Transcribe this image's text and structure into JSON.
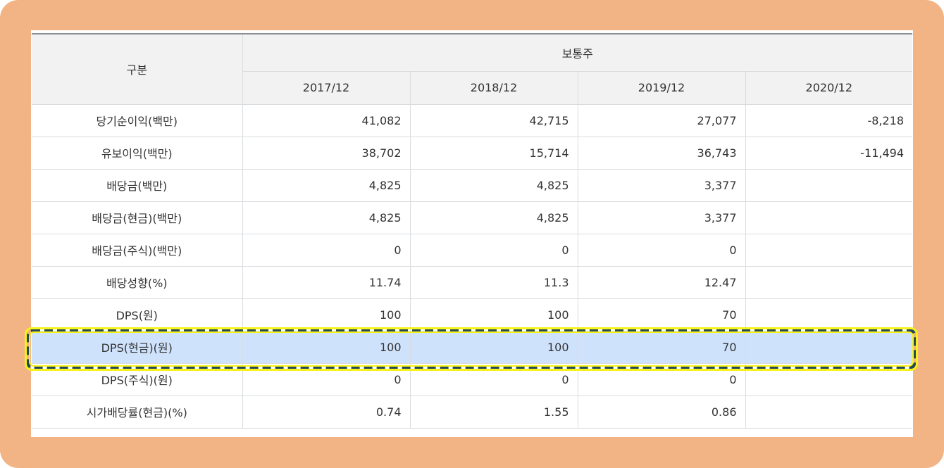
{
  "header": {
    "category": "구분",
    "group": "보통주",
    "periods": [
      "2017/12",
      "2018/12",
      "2019/12",
      "2020/12"
    ]
  },
  "rows": [
    {
      "label": "당기순이익(백만)",
      "values": [
        "41,082",
        "42,715",
        "27,077",
        "-8,218"
      ]
    },
    {
      "label": "유보이익(백만)",
      "values": [
        "38,702",
        "15,714",
        "36,743",
        "-11,494"
      ]
    },
    {
      "label": "배당금(백만)",
      "values": [
        "4,825",
        "4,825",
        "3,377",
        ""
      ]
    },
    {
      "label": "배당금(현금)(백만)",
      "values": [
        "4,825",
        "4,825",
        "3,377",
        ""
      ]
    },
    {
      "label": "배당금(주식)(백만)",
      "values": [
        "0",
        "0",
        "0",
        ""
      ]
    },
    {
      "label": "배당성향(%)",
      "values": [
        "11.74",
        "11.3",
        "12.47",
        ""
      ]
    },
    {
      "label": "DPS(원)",
      "values": [
        "100",
        "100",
        "70",
        ""
      ]
    },
    {
      "label": "DPS(현금)(원)",
      "values": [
        "100",
        "100",
        "70",
        ""
      ]
    },
    {
      "label": "DPS(주식)(원)",
      "values": [
        "0",
        "0",
        "0",
        ""
      ]
    },
    {
      "label": "시가배당률(현금)(%)",
      "values": [
        "0.74",
        "1.55",
        "0.86",
        ""
      ]
    }
  ],
  "highlighted_row": 7,
  "colors": {
    "frame": "#f2b385",
    "header_bg": "#f2f2f2",
    "highlight_row": "#cfe2fb",
    "highlight_border": "#244a5a",
    "highlight_glow": "#f6f21a"
  }
}
